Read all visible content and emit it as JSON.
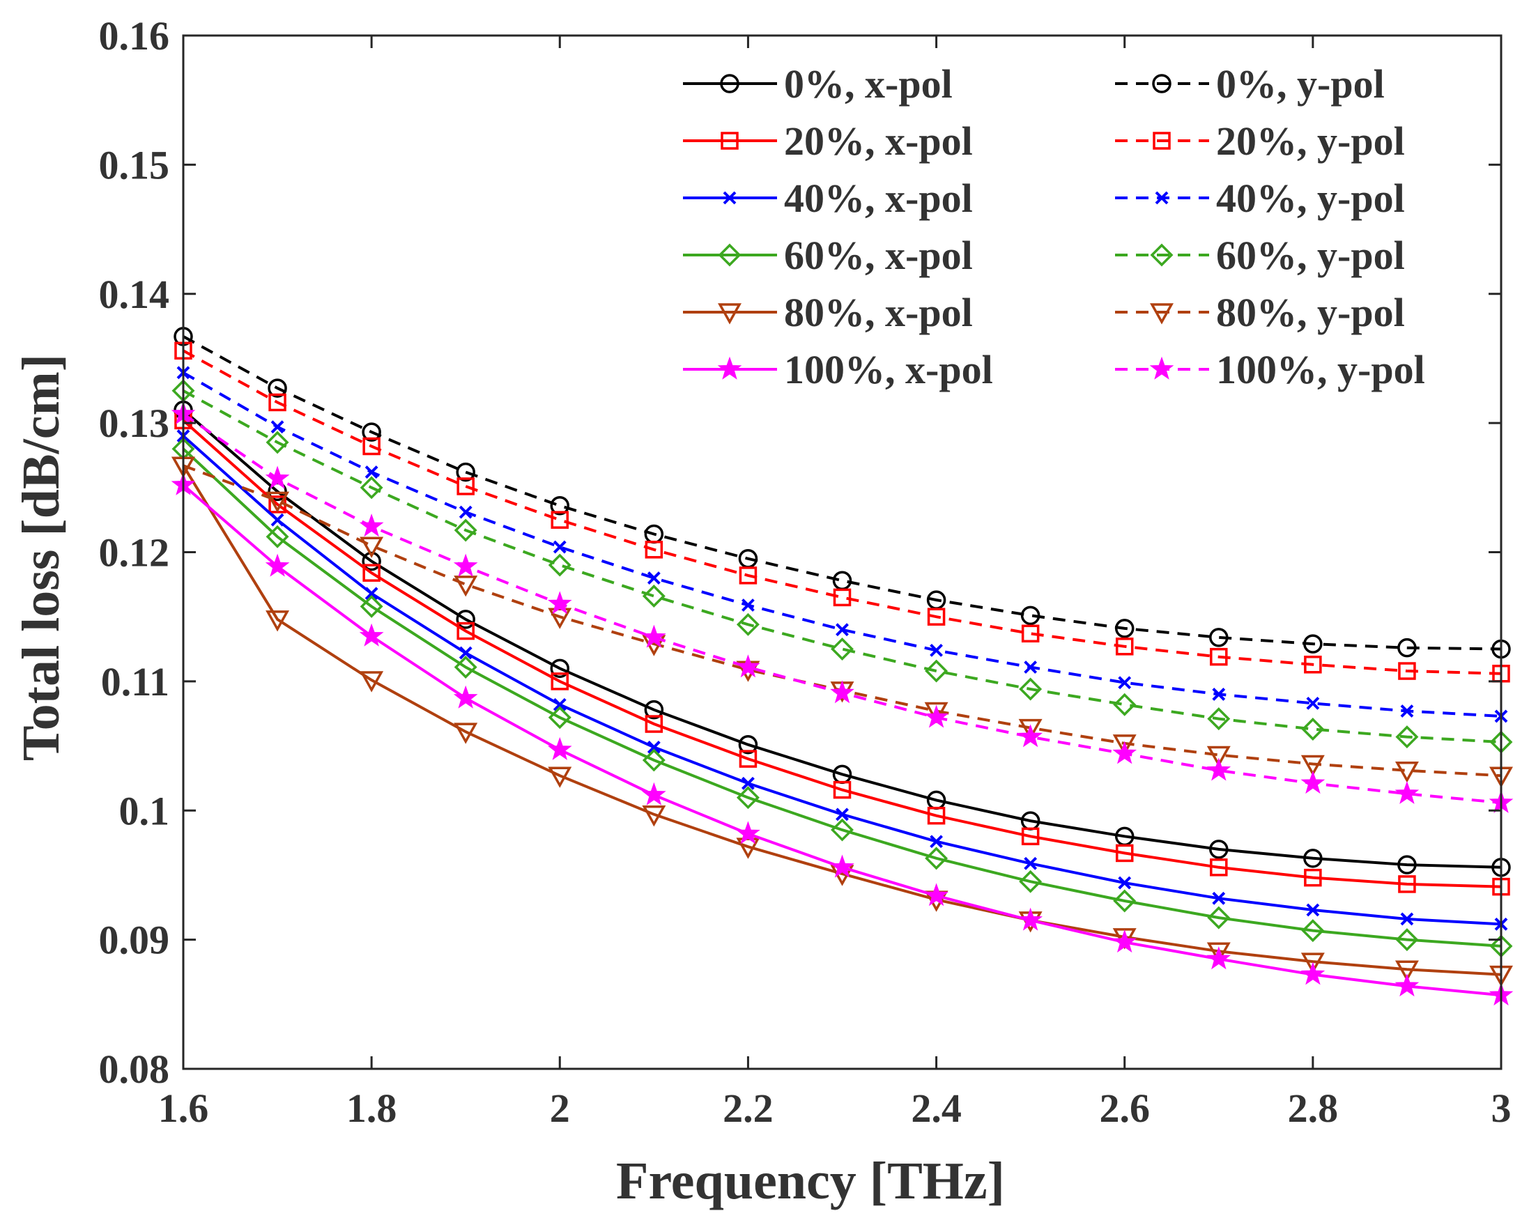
{
  "chart_data": {
    "type": "line",
    "title": "",
    "xlabel": "Frequency [THz]",
    "ylabel": "Total loss [dB/cm]",
    "xlim": [
      1.6,
      3.0
    ],
    "ylim": [
      0.08,
      0.16
    ],
    "xticks": [
      1.6,
      1.8,
      2.0,
      2.2,
      2.4,
      2.6,
      2.8,
      3.0
    ],
    "xtick_labels": [
      "1.6",
      "1.8",
      "2",
      "2.2",
      "2.4",
      "2.6",
      "2.8",
      "3"
    ],
    "yticks": [
      0.08,
      0.09,
      0.1,
      0.11,
      0.12,
      0.13,
      0.14,
      0.15,
      0.16
    ],
    "ytick_labels": [
      "0.08",
      "0.09",
      "0.1",
      "0.11",
      "0.12",
      "0.13",
      "0.14",
      "0.15",
      "0.16"
    ],
    "grid": false,
    "legend_placement": "top-right",
    "x": [
      1.6,
      1.7,
      1.8,
      1.9,
      2.0,
      2.1,
      2.2,
      2.3,
      2.4,
      2.5,
      2.6,
      2.7,
      2.8,
      2.9,
      3.0
    ],
    "series": [
      {
        "name": "0%, x-pol",
        "color": "#000000",
        "dash": "solid",
        "marker": "circle",
        "values": [
          0.131,
          0.1247,
          0.1193,
          0.1148,
          0.111,
          0.1078,
          0.1051,
          0.1028,
          0.1008,
          0.0992,
          0.098,
          0.097,
          0.0963,
          0.0958,
          0.0956
        ]
      },
      {
        "name": "0%, y-pol",
        "color": "#000000",
        "dash": "dashed",
        "marker": "circle",
        "values": [
          0.1367,
          0.1327,
          0.1293,
          0.1262,
          0.1236,
          0.1214,
          0.1195,
          0.1178,
          0.1163,
          0.1151,
          0.1141,
          0.1134,
          0.1129,
          0.1126,
          0.1125
        ]
      },
      {
        "name": "20%, x-pol",
        "color": "#ff0000",
        "dash": "solid",
        "marker": "square",
        "values": [
          0.1302,
          0.1237,
          0.1184,
          0.1139,
          0.11,
          0.1067,
          0.104,
          0.1016,
          0.0996,
          0.098,
          0.0967,
          0.0956,
          0.0948,
          0.0943,
          0.0941
        ]
      },
      {
        "name": "20%, y-pol",
        "color": "#ff0000",
        "dash": "dashed",
        "marker": "square",
        "values": [
          0.1356,
          0.1316,
          0.1282,
          0.1251,
          0.1225,
          0.1202,
          0.1182,
          0.1165,
          0.115,
          0.1137,
          0.1127,
          0.1119,
          0.1113,
          0.1108,
          0.1106
        ]
      },
      {
        "name": "40%, x-pol",
        "color": "#0000ff",
        "dash": "solid",
        "marker": "x",
        "values": [
          0.129,
          0.1225,
          0.1168,
          0.1122,
          0.1082,
          0.1049,
          0.1021,
          0.0997,
          0.0976,
          0.0959,
          0.0944,
          0.0932,
          0.0923,
          0.0916,
          0.0912
        ]
      },
      {
        "name": "40%, y-pol",
        "color": "#0000ff",
        "dash": "dashed",
        "marker": "x",
        "values": [
          0.1339,
          0.1297,
          0.1262,
          0.1231,
          0.1204,
          0.118,
          0.1159,
          0.114,
          0.1124,
          0.1111,
          0.1099,
          0.109,
          0.1083,
          0.1077,
          0.1073
        ]
      },
      {
        "name": "60%, x-pol",
        "color": "#3ca820",
        "dash": "solid",
        "marker": "diamond",
        "values": [
          0.128,
          0.1212,
          0.1158,
          0.1111,
          0.1072,
          0.1039,
          0.101,
          0.0985,
          0.0963,
          0.0945,
          0.093,
          0.0917,
          0.0907,
          0.09,
          0.0895
        ]
      },
      {
        "name": "60%, y-pol",
        "color": "#3ca820",
        "dash": "dashed",
        "marker": "diamond",
        "values": [
          0.1325,
          0.1285,
          0.125,
          0.1217,
          0.119,
          0.1166,
          0.1144,
          0.1125,
          0.1108,
          0.1094,
          0.1082,
          0.1071,
          0.1063,
          0.1057,
          0.1053
        ]
      },
      {
        "name": "80%, x-pol",
        "color": "#b0400f",
        "dash": "solid",
        "marker": "triangle-down",
        "values": [
          0.1267,
          0.1148,
          0.1101,
          0.1061,
          0.1027,
          0.0997,
          0.0972,
          0.0951,
          0.0931,
          0.0915,
          0.0902,
          0.0891,
          0.0883,
          0.0877,
          0.0873
        ]
      },
      {
        "name": "80%, y-pol",
        "color": "#b0400f",
        "dash": "dashed",
        "marker": "triangle-down",
        "values": [
          0.1267,
          0.124,
          0.1205,
          0.1175,
          0.115,
          0.1129,
          0.1109,
          0.1093,
          0.1077,
          0.1064,
          0.1052,
          0.1043,
          0.1036,
          0.1031,
          0.1027
        ]
      },
      {
        "name": "100%, x-pol",
        "color": "#ff00ff",
        "dash": "solid",
        "marker": "star",
        "values": [
          0.1252,
          0.1189,
          0.1135,
          0.1087,
          0.1047,
          0.1012,
          0.0982,
          0.0956,
          0.0934,
          0.0915,
          0.0898,
          0.0885,
          0.0873,
          0.0864,
          0.0857
        ]
      },
      {
        "name": "100%, y-pol",
        "color": "#ff00ff",
        "dash": "dashed",
        "marker": "star",
        "values": [
          0.1307,
          0.1257,
          0.122,
          0.1189,
          0.116,
          0.1134,
          0.1111,
          0.1091,
          0.1072,
          0.1057,
          0.1044,
          0.1031,
          0.1021,
          0.1013,
          0.1006
        ]
      }
    ]
  }
}
